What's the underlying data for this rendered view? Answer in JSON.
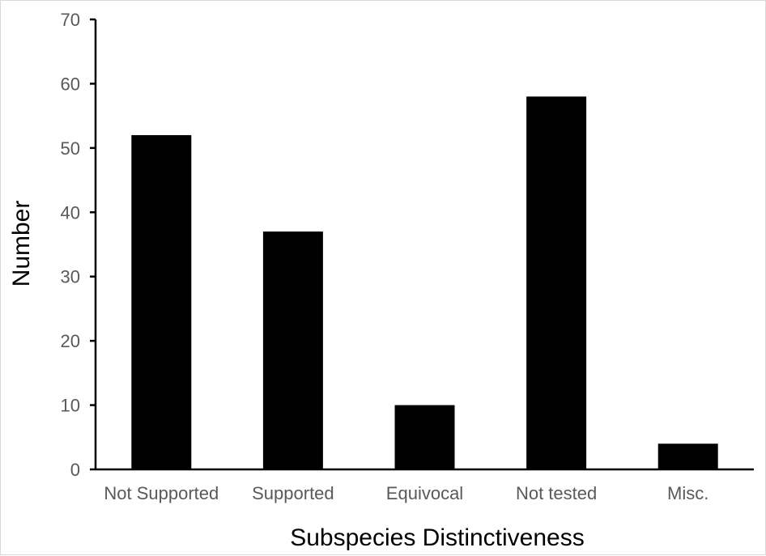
{
  "chart_data": {
    "type": "bar",
    "title": "",
    "xlabel": "Subspecies Distinctiveness",
    "ylabel": "Number",
    "categories": [
      "Not Supported",
      "Supported",
      "Equivocal",
      "Not tested",
      "Misc."
    ],
    "values": [
      52,
      37,
      10,
      58,
      4
    ],
    "ylim": [
      0,
      70
    ],
    "yticks": [
      0,
      10,
      20,
      30,
      40,
      50,
      60,
      70
    ],
    "grid": false,
    "legend": "none",
    "bar_color": "#000000",
    "axis_color": "#000000",
    "tick_label_color": "#595959"
  }
}
